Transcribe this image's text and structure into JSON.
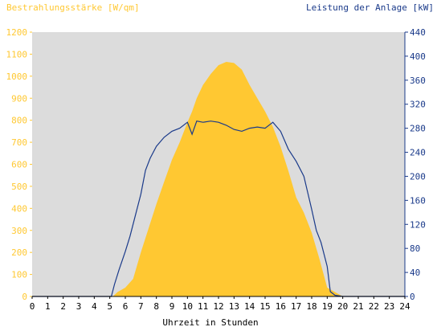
{
  "chart_data": {
    "type": "area",
    "left_axis_label": "Bestrahlungsstärke [W/qm]",
    "right_axis_label": "Leistung der Anlage [kW]",
    "xlabel": "Uhrzeit in Stunden",
    "x_ticks": [
      "0",
      "1",
      "2",
      "3",
      "4",
      "5",
      "6",
      "7",
      "8",
      "9",
      "10",
      "11",
      "12",
      "13",
      "14",
      "15",
      "16",
      "17",
      "18",
      "19",
      "20",
      "21",
      "22",
      "23",
      "24"
    ],
    "xlim": [
      0,
      24
    ],
    "y_left_ticks": [
      "0",
      "100",
      "200",
      "300",
      "400",
      "500",
      "600",
      "700",
      "800",
      "900",
      "1000",
      "1100",
      "1200"
    ],
    "y_left_lim": [
      0,
      1200
    ],
    "y_right_ticks": [
      "0",
      "40",
      "80",
      "120",
      "160",
      "200",
      "240",
      "280",
      "320",
      "360",
      "400",
      "440"
    ],
    "y_right_lim": [
      0,
      440
    ],
    "grid": false,
    "colors": {
      "background": "#dcdcdc",
      "irradiance": "#ffc832",
      "power": "#1a3a8a",
      "left_text": "#ffc832",
      "right_text": "#1a3a8a",
      "axis_text": "#000000"
    },
    "series": [
      {
        "name": "Bestrahlungsstärke [W/qm]",
        "axis": "left",
        "style": "area",
        "x": [
          0,
          5.2,
          5.5,
          6.0,
          6.5,
          7.0,
          7.5,
          8.0,
          8.5,
          9.0,
          9.5,
          10.0,
          10.3,
          10.6,
          11.0,
          11.5,
          12.0,
          12.5,
          13.0,
          13.5,
          14.0,
          14.5,
          15.0,
          15.5,
          16.0,
          16.5,
          17.0,
          17.5,
          18.0,
          18.5,
          19.0,
          19.5,
          20.0,
          24
        ],
        "y": [
          0,
          0,
          20,
          40,
          80,
          200,
          310,
          420,
          520,
          620,
          700,
          790,
          840,
          900,
          960,
          1010,
          1050,
          1065,
          1060,
          1030,
          960,
          900,
          840,
          770,
          680,
          570,
          450,
          380,
          290,
          170,
          40,
          20,
          0,
          0
        ]
      },
      {
        "name": "Leistung der Anlage [kW]",
        "axis": "right",
        "style": "line",
        "x": [
          0,
          5.1,
          5.3,
          5.6,
          6.0,
          6.3,
          6.7,
          7.0,
          7.3,
          7.6,
          8.0,
          8.5,
          9.0,
          9.5,
          10.0,
          10.3,
          10.6,
          11.0,
          11.5,
          12.0,
          12.5,
          13.0,
          13.5,
          14.0,
          14.5,
          15.0,
          15.5,
          16.0,
          16.5,
          17.0,
          17.5,
          18.0,
          18.3,
          18.6,
          19.0,
          19.2,
          19.5,
          20.0,
          24
        ],
        "y": [
          0,
          0,
          20,
          45,
          75,
          100,
          140,
          170,
          210,
          230,
          250,
          265,
          275,
          280,
          290,
          270,
          292,
          290,
          292,
          290,
          285,
          278,
          275,
          280,
          282,
          280,
          290,
          275,
          245,
          225,
          200,
          145,
          110,
          90,
          50,
          8,
          2,
          0,
          0
        ]
      }
    ]
  }
}
